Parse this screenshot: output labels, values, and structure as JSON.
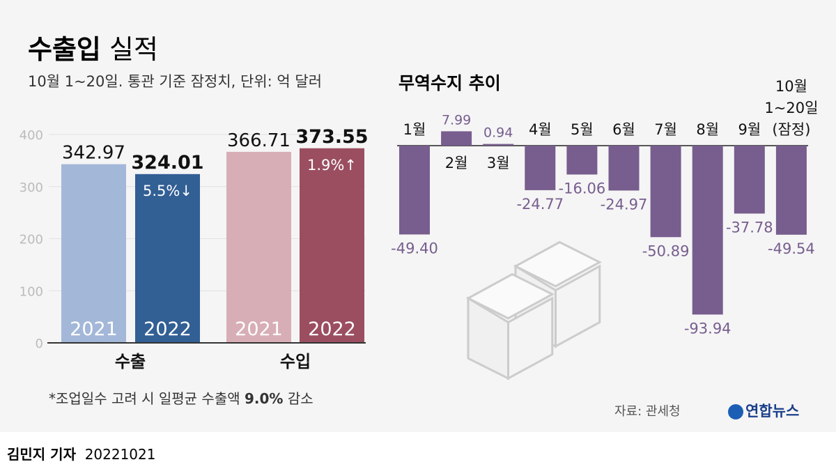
{
  "title": {
    "bold": "수출입",
    "rest": "실적"
  },
  "subtitle": "10월 1~20일. 통관 기준 잠정치, 단위: 억 달러",
  "footnote": {
    "pre": "*조업일수 고려 시 일평균 수출액 ",
    "bold": "9.0%",
    "post": " 감소"
  },
  "source": "자료: 관세청",
  "logo": "연합뉴스",
  "byline": {
    "author": "김민지 기자",
    "date": "20221021"
  },
  "chart_data": [
    {
      "type": "bar",
      "ylim": [
        0,
        400
      ],
      "yticks": [
        "0",
        "100",
        "200",
        "300",
        "400"
      ],
      "grid": true,
      "categories": [
        "수출",
        "수입"
      ],
      "bars": [
        {
          "group": "수출",
          "year": "2021",
          "value": 342.97,
          "label": "342.97",
          "color": "#a3b7d8"
        },
        {
          "group": "수출",
          "year": "2022",
          "value": 324.01,
          "label": "324.01",
          "change": "5.5%↓",
          "color": "#325f94"
        },
        {
          "group": "수입",
          "year": "2021",
          "value": 366.71,
          "label": "366.71",
          "color": "#d8aeb6"
        },
        {
          "group": "수입",
          "year": "2022",
          "value": 373.55,
          "label": "373.55",
          "change": "1.9%↑",
          "color": "#9b4e60"
        }
      ]
    },
    {
      "type": "bar",
      "title": "무역수지 추이",
      "color": "#775e8e",
      "categories": [
        "1월",
        "2월",
        "3월",
        "4월",
        "5월",
        "6월",
        "7월",
        "8월",
        "9월",
        "10월\n1~20일\n(잠정)"
      ],
      "values": [
        -49.4,
        7.99,
        0.94,
        -24.77,
        -16.06,
        -24.97,
        -50.89,
        -93.94,
        -37.78,
        -49.54
      ],
      "labels": [
        "-49.40",
        "7.99",
        "0.94",
        "-24.77",
        "-16.06",
        "-24.97",
        "-50.89",
        "-93.94",
        "-37.78",
        "-49.54"
      ]
    }
  ]
}
